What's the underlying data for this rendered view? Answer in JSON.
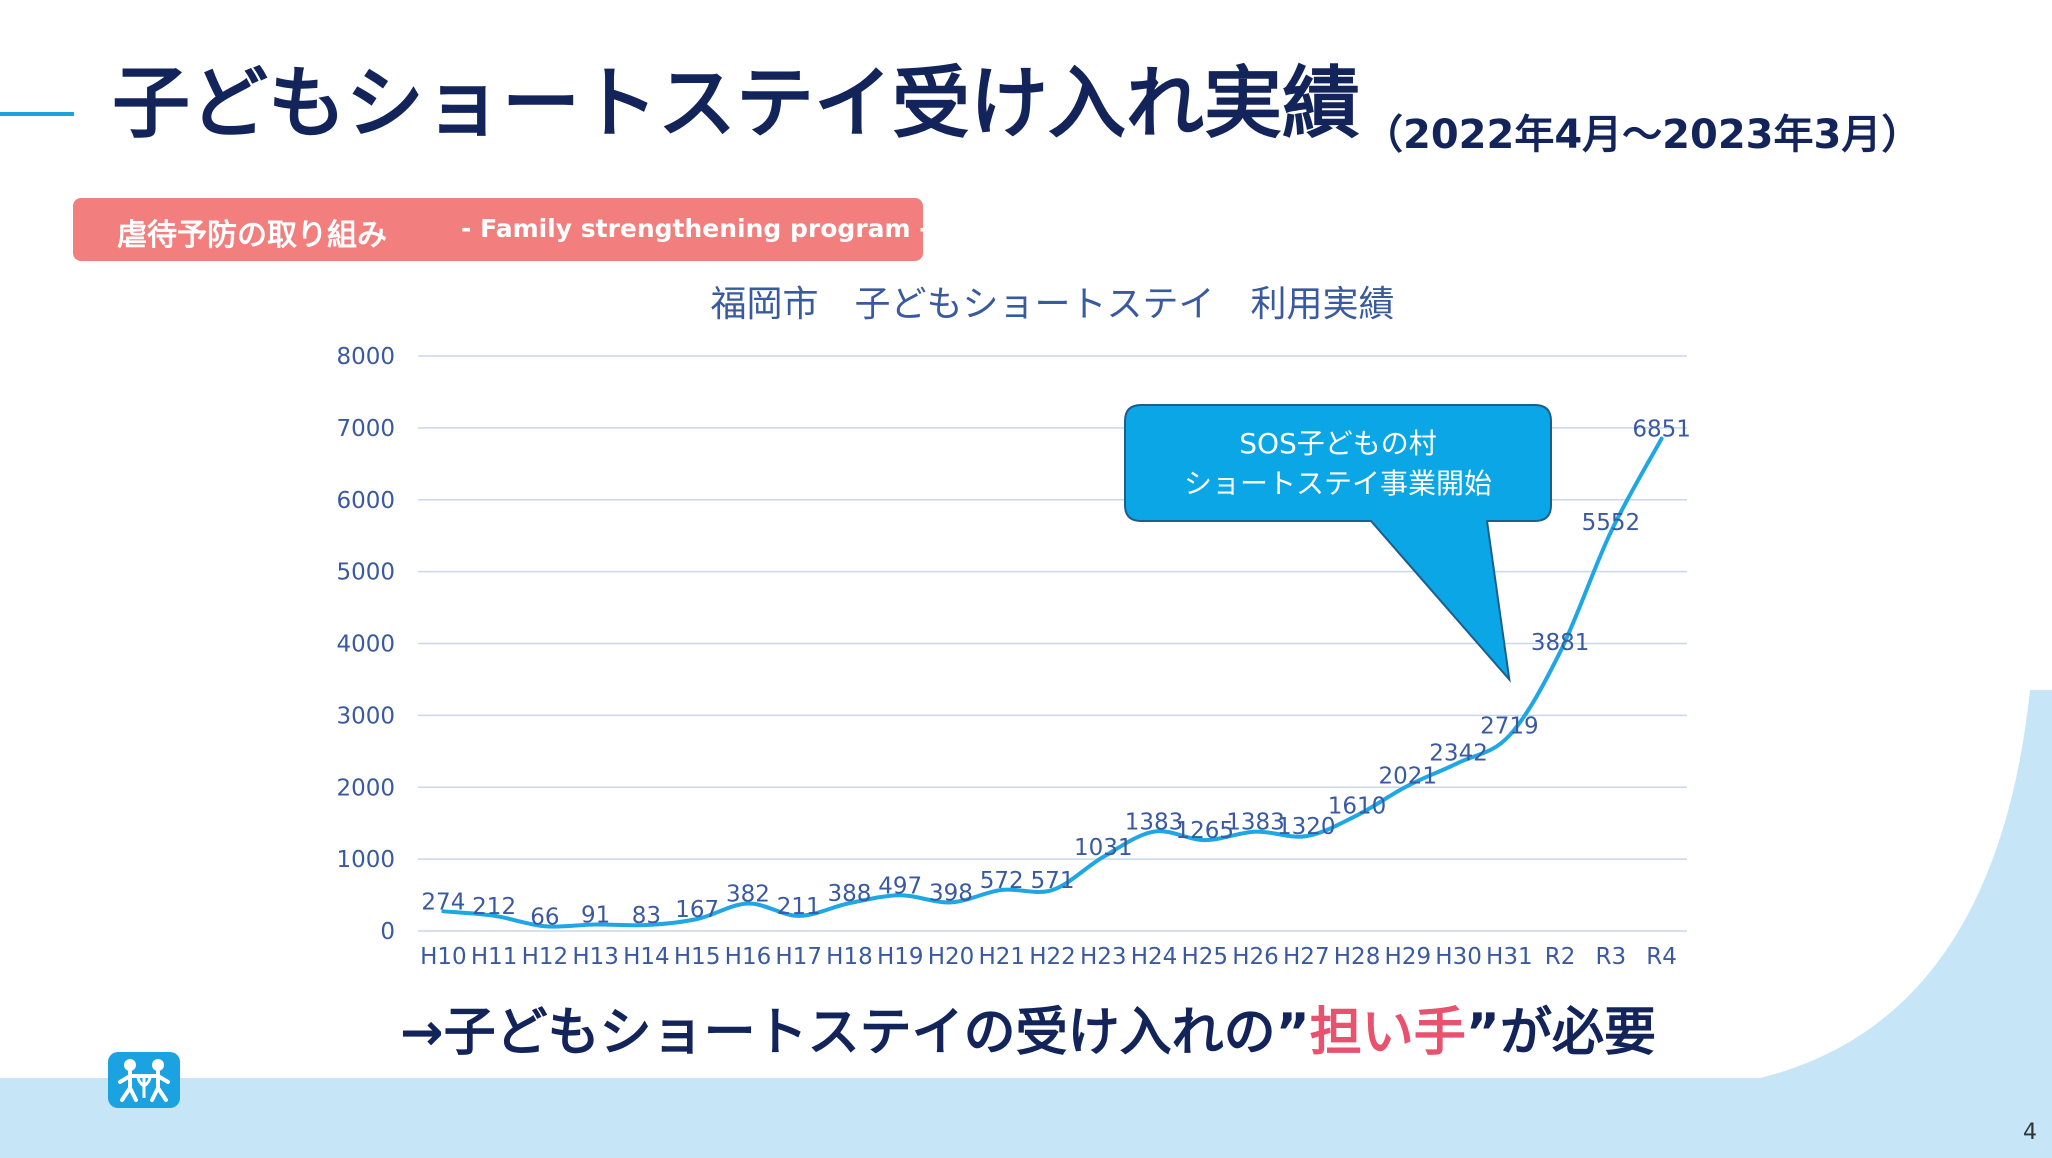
{
  "header": {
    "title": "子どもショートステイ受け入れ実績",
    "subtitle": "（2022年4月～2023年3月）"
  },
  "tag": {
    "label": "虐待予防の取り組み",
    "english": "- Family strengthening program -"
  },
  "chart_data": {
    "type": "line",
    "title": "福岡市　子どもショートステイ　利用実績",
    "categories": [
      "H10",
      "H11",
      "H12",
      "H13",
      "H14",
      "H15",
      "H16",
      "H17",
      "H18",
      "H19",
      "H20",
      "H21",
      "H22",
      "H23",
      "H24",
      "H25",
      "H26",
      "H27",
      "H28",
      "H29",
      "H30",
      "H31",
      "R2",
      "R3",
      "R4"
    ],
    "series": [
      {
        "values": [
          274,
          212,
          66,
          91,
          83,
          167,
          382,
          211,
          388,
          497,
          398,
          572,
          571,
          1031,
          1383,
          1265,
          1383,
          1320,
          1610,
          2021,
          2342,
          2719,
          3881,
          5552,
          6851
        ]
      }
    ],
    "ylim": [
      0,
      8000
    ],
    "yticks": [
      0,
      1000,
      2000,
      3000,
      4000,
      5000,
      6000,
      7000,
      8000
    ],
    "grid": true,
    "legend": "none",
    "colors": {
      "line": "#1ea7e4",
      "grid": "#c7d7ec",
      "text": "#3a5aa0"
    },
    "annotation": {
      "lines": [
        "SOS子どもの村",
        "ショートステイ事業開始"
      ],
      "points_to": "H31"
    }
  },
  "footer": {
    "message_before": "→子どもショートステイの受け入れの”",
    "message_highlight": "担い手",
    "message_after": "”が必要",
    "logo_icon": "sos-childrens-villages-logo-icon",
    "page_number": "4"
  }
}
